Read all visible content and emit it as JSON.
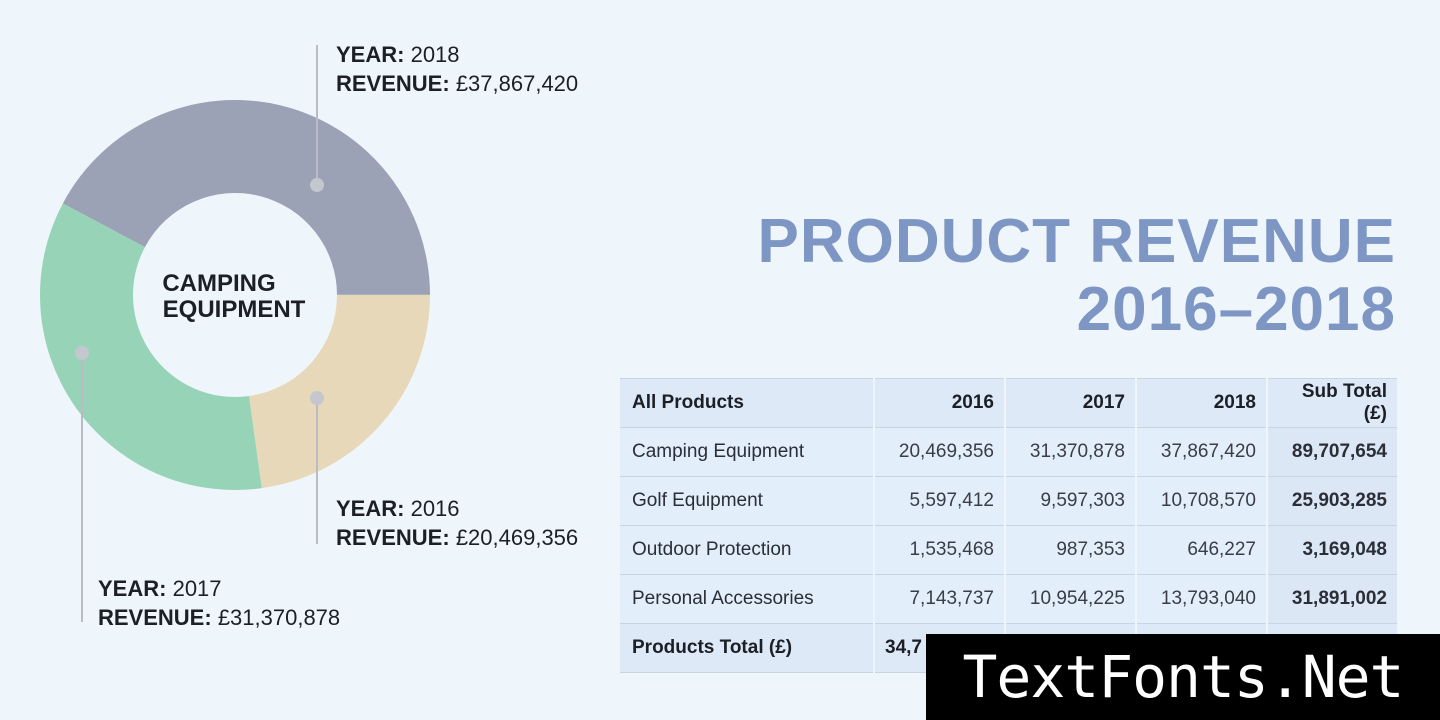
{
  "chart_data": {
    "type": "pie",
    "center_label": [
      "CAMPING",
      "EQUIPMENT"
    ],
    "slices": [
      {
        "year": "2018",
        "value": 37867420,
        "color": "#9ba2b6"
      },
      {
        "year": "2016",
        "value": 20469356,
        "color": "#e7d8b9"
      },
      {
        "year": "2017",
        "value": 31370878,
        "color": "#97d4b7"
      }
    ],
    "callouts": [
      {
        "year_label": "YEAR:",
        "year": "2018",
        "revenue_label": "REVENUE:",
        "revenue": "£37,867,420"
      },
      {
        "year_label": "YEAR:",
        "year": "2016",
        "revenue_label": "REVENUE:",
        "revenue": "£20,469,356"
      },
      {
        "year_label": "YEAR:",
        "year": "2017",
        "revenue_label": "REVENUE:",
        "revenue": "£31,370,878"
      }
    ]
  },
  "title": {
    "line1": "PRODUCT REVENUE",
    "line2": "2016–2018"
  },
  "table": {
    "headers": [
      "All Products",
      "2016",
      "2017",
      "2018",
      "Sub Total (£)"
    ],
    "rows": [
      [
        "Camping Equipment",
        "20,469,356",
        "31,370,878",
        "37,867,420",
        "89,707,654"
      ],
      [
        "Golf Equipment",
        "5,597,412",
        "9,597,303",
        "10,708,570",
        "25,903,285"
      ],
      [
        "Outdoor Protection",
        "1,535,468",
        "987,353",
        "646,227",
        "3,169,048"
      ],
      [
        "Personal Accessories",
        "7,143,737",
        "10,954,225",
        "13,793,040",
        "31,891,002"
      ]
    ],
    "total": [
      "Products Total (£)",
      "34,7",
      "",
      "",
      ""
    ]
  },
  "watermark": "TextFonts.Net"
}
